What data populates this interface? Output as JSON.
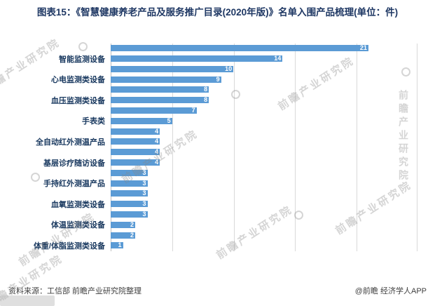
{
  "title": "图表15：《智慧健康养老产品及服务推广目录(2020年版)》名单入围产品梳理(单位：件)",
  "watermark": {
    "text": "前瞻产业研究院"
  },
  "footer": {
    "source": "资料来源：工信部 前瞻产业研究院整理",
    "credit": "@前瞻 经济学人APP"
  },
  "colors": {
    "bar": "#5B9BD5",
    "title_text": "#1F3864",
    "category_text": "#17375E",
    "gridline": "#D9D9D9",
    "value_text": "#FFFFFF",
    "footer_text": "#404040"
  },
  "chart_data": {
    "type": "bar",
    "orientation": "horizontal",
    "title": "图表15：《智慧健康养老产品及服务推广目录(2020年版)》名单入围产品梳理(单位：件)",
    "unit": "件",
    "xlim": [
      0,
      25
    ],
    "gridline_interval": 5,
    "grid": true,
    "legend": false,
    "axis_label_note": "category labels are rendered for every second bar only",
    "categories": [
      "",
      "智能监测设备",
      "",
      "心电监测类设备",
      "",
      "血压监测类设备",
      "",
      "手表类",
      "",
      "全自动红外测温产品",
      "",
      "基层诊疗随访设备",
      "",
      "手持红外测温产品",
      "",
      "血氧监测类设备",
      "",
      "体温监测类设备",
      "",
      "体重/体脂监测类设备"
    ],
    "values": [
      21,
      14,
      10,
      9,
      8,
      8,
      7,
      5,
      4,
      4,
      4,
      4,
      3,
      3,
      3,
      3,
      3,
      2,
      2,
      1
    ]
  }
}
